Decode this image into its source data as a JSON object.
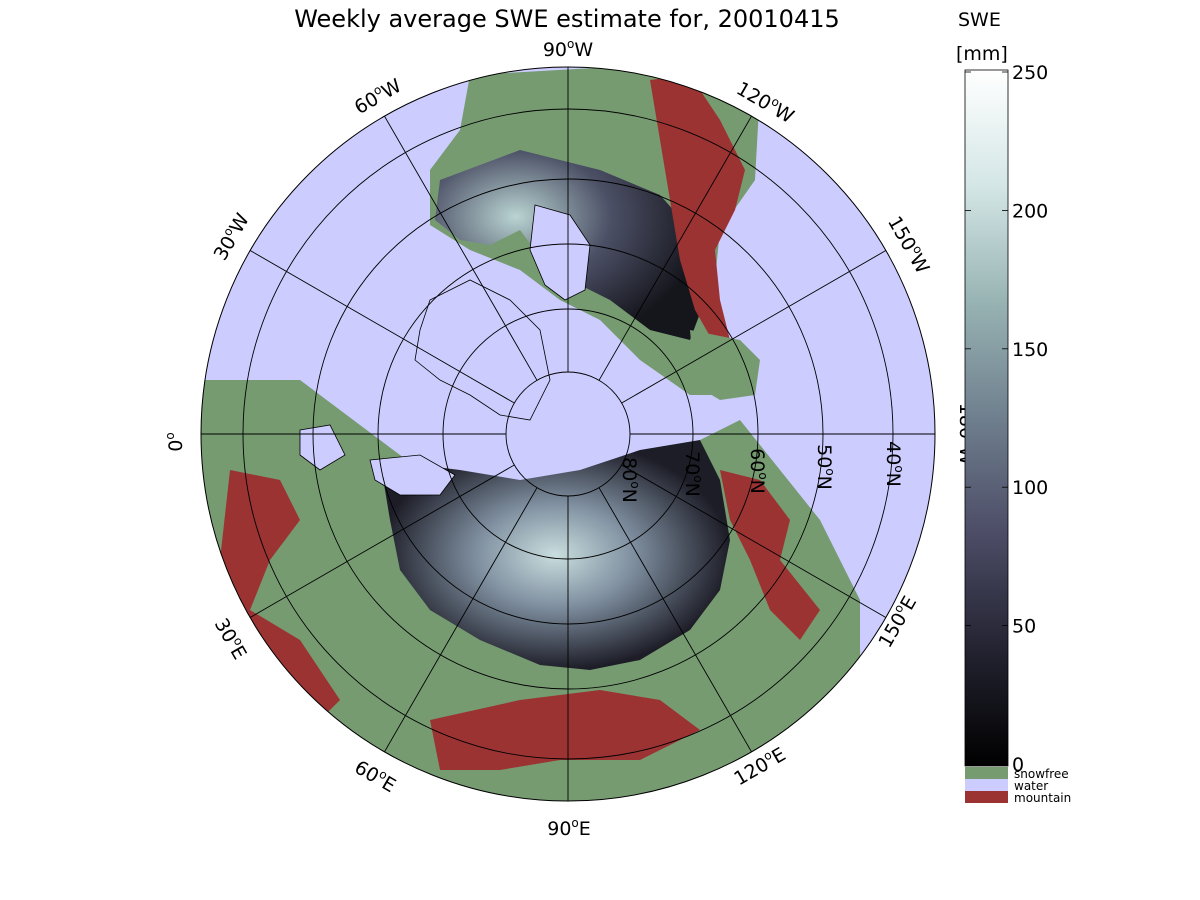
{
  "title": "Weekly average SWE estimate for, 20010415",
  "colorbar": {
    "label_line1": "SWE",
    "label_line2": "[mm]",
    "ticks": [
      "0",
      "50",
      "100",
      "150",
      "200",
      "250"
    ],
    "range": [
      0,
      250
    ],
    "gradient": [
      "#000000",
      "#232331",
      "#4c4c66",
      "#6f7f8e",
      "#98b3b3",
      "#d4e6e6",
      "#ffffff"
    ],
    "categories": [
      {
        "label": "snowfree",
        "color": "#769b71"
      },
      {
        "label": "water",
        "color": "#ccccff"
      },
      {
        "label": "mountain",
        "color": "#9b3333"
      }
    ]
  },
  "map": {
    "projection": "north polar stereographic",
    "colors": {
      "ocean": "#ccccff",
      "land_snowfree": "#769b71",
      "mountain": "#9b3333",
      "coast": "#000000",
      "grid": "#000000"
    },
    "lon_labels": [
      {
        "deg": "90",
        "hemi": "W"
      },
      {
        "deg": "120",
        "hemi": "W"
      },
      {
        "deg": "150",
        "hemi": "W"
      },
      {
        "deg": "180",
        "hemi": "W"
      },
      {
        "deg": "150",
        "hemi": "E"
      },
      {
        "deg": "120",
        "hemi": "E"
      },
      {
        "deg": "90",
        "hemi": "E"
      },
      {
        "deg": "60",
        "hemi": "E"
      },
      {
        "deg": "30",
        "hemi": "E"
      },
      {
        "deg": "0",
        "hemi": ""
      },
      {
        "deg": "30",
        "hemi": "W"
      },
      {
        "deg": "60",
        "hemi": "W"
      }
    ],
    "lat_labels": [
      {
        "deg": "80",
        "hemi": "N"
      },
      {
        "deg": "70",
        "hemi": "N"
      },
      {
        "deg": "60",
        "hemi": "N"
      },
      {
        "deg": "50",
        "hemi": "N"
      },
      {
        "deg": "40",
        "hemi": "N"
      }
    ],
    "degree_symbol": "o"
  }
}
